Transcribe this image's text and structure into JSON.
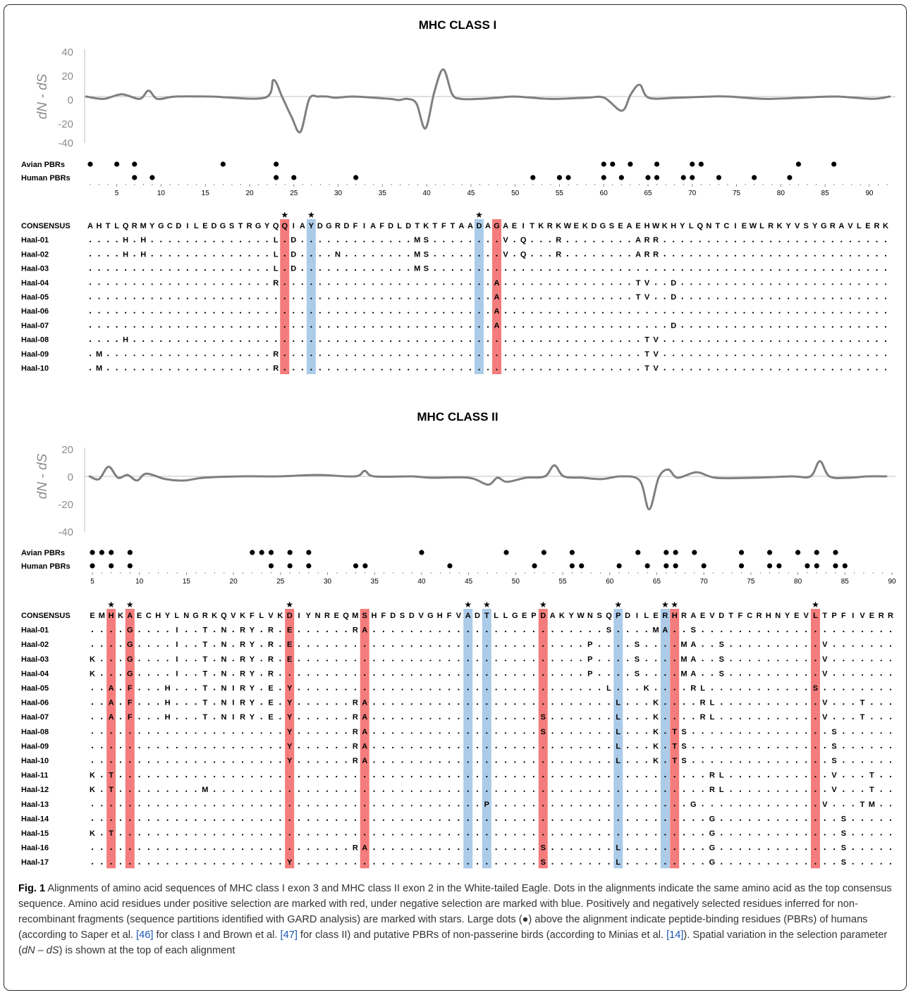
{
  "classI": {
    "title": "MHC CLASS I",
    "ylabel": "dN - dS",
    "yticks": [
      "40",
      "20",
      "0",
      "-20",
      "-40"
    ],
    "avian_label": "Avian PBRs",
    "human_label": "Human PBRs",
    "avian_pbrs": [
      2,
      5,
      7,
      17,
      23,
      60,
      61,
      63,
      66,
      70,
      71,
      82,
      86
    ],
    "human_pbrs": [
      7,
      9,
      23,
      25,
      32,
      52,
      55,
      56,
      60,
      62,
      65,
      66,
      69,
      70,
      73,
      77,
      81
    ],
    "axis_min": 2,
    "axis_max": 92,
    "axis_labels": [
      "5",
      "10",
      "15",
      "20",
      "25",
      "30",
      "35",
      "40",
      "45",
      "50",
      "55",
      "60",
      "65",
      "70",
      "75",
      "80",
      "85",
      "90"
    ],
    "consensus_label": "CONSENSUS",
    "consensus": "AHTLQRMYGCDILEDGSTRGYQQIAYDGRDFIAFDLDTKTFTAADAGAEITKRKWEKDGSEAEHWKHYLQNTCIEWLRKYVSYGRAVLERK",
    "red_cols": [
      22,
      46
    ],
    "blue_cols": [
      25,
      44
    ],
    "star_cols": [
      22,
      25,
      44
    ],
    "rows": [
      {
        "name": "Haal-01",
        "seq": "....H.H..............L.D.............MS........V.Q...R........ARR........................"
      },
      {
        "name": "Haal-02",
        "seq": "....H.H..............L.D....N........MS........V.Q...R........ARR........................"
      },
      {
        "name": "Haal-03",
        "seq": ".....................L.D.............MS................................................."
      },
      {
        "name": "Haal-04",
        "seq": ".....................R........................A...............TV..D......................"
      },
      {
        "name": "Haal-05",
        "seq": "..............................................A...............TV..D......................"
      },
      {
        "name": "Haal-06",
        "seq": "..............................................A.........................................."
      },
      {
        "name": "Haal-07",
        "seq": "..............................................A...................D......................"
      },
      {
        "name": "Haal-08",
        "seq": "....H..........................................................TV........................"
      },
      {
        "name": "Haal-09",
        "seq": ".M...................R.........................................TV........................"
      },
      {
        "name": "Haal-10",
        "seq": ".M...................R.........................................TV........................"
      }
    ],
    "curve_x": [
      0,
      2,
      4,
      6,
      7,
      8,
      10,
      14,
      20,
      21,
      22,
      23,
      24,
      25,
      26,
      27,
      28,
      30,
      34,
      35,
      36,
      37,
      38,
      39,
      40,
      41,
      42,
      44,
      46,
      48,
      52,
      56,
      58,
      60,
      61,
      62,
      63,
      66,
      70,
      72,
      76,
      80,
      84,
      88,
      90
    ],
    "curve_y": [
      0,
      -2,
      2,
      -2,
      5,
      -2,
      0,
      0,
      -1,
      14,
      -1,
      -17,
      -30,
      -2,
      0,
      0,
      -1,
      0,
      -2,
      -3,
      -2,
      -6,
      -27,
      4,
      23,
      2,
      -2,
      -2,
      -1,
      0,
      -2,
      -1,
      -1,
      -12,
      2,
      10,
      -1,
      -1,
      0,
      0,
      -2,
      -1,
      0,
      -2,
      0
    ]
  },
  "classII": {
    "title": "MHC CLASS II",
    "ylabel": "dN - dS",
    "yticks": [
      "20",
      "0",
      "-20",
      "-40"
    ],
    "avian_label": "Avian PBRs",
    "human_label": "Human PBRs",
    "avian_pbrs": [
      5,
      6,
      7,
      9,
      22,
      23,
      24,
      26,
      28,
      40,
      49,
      53,
      56,
      63,
      66,
      67,
      69,
      74,
      77,
      80,
      82,
      84
    ],
    "human_pbrs": [
      5,
      7,
      9,
      24,
      26,
      28,
      33,
      34,
      43,
      52,
      56,
      57,
      61,
      64,
      66,
      67,
      70,
      74,
      77,
      78,
      81,
      82,
      84,
      85
    ],
    "axis_min": 5,
    "axis_max": 90,
    "axis_labels": [
      "5",
      "10",
      "15",
      "20",
      "25",
      "30",
      "35",
      "40",
      "45",
      "50",
      "55",
      "60",
      "65",
      "70",
      "75",
      "80",
      "85",
      "90"
    ],
    "consensus_label": "CONSENSUS",
    "consensus": "EMHKAECHYLNGRKQVKFLVKDIYNREQMSHFDSDVGHFVADTLLGEPDAKYWNSQPDILERHRAEVDTFCRHNYEVLTPFIVERR",
    "red_cols": [
      2,
      4,
      21,
      29,
      48,
      62,
      77
    ],
    "blue_cols": [
      40,
      42,
      56,
      61
    ],
    "star_cols": [
      2,
      4,
      21,
      40,
      42,
      48,
      56,
      61,
      62,
      77
    ],
    "rows": [
      {
        "name": "Haal-01",
        "seq": "....G....I..T.N.RY.R.E......RA.........................S....MA..S......................."
      },
      {
        "name": "Haal-02",
        "seq": "....G....I..T.N.RY.R.E...............................P....S....MA..S..........V.........."
      },
      {
        "name": "Haal-03",
        "seq": "K...G....I..T.N.RY.R.E...............................P....S....MA..S..........V.........."
      },
      {
        "name": "Haal-04",
        "seq": "K...G....I..T.N.RY.R.................................P....S....MA..S..........V.........."
      },
      {
        "name": "Haal-05",
        "seq": "..A.F...H...T.NIRY.E.Y.................................L...K....RL...........S.........."
      },
      {
        "name": "Haal-06",
        "seq": "..A.F...H...T.NIRY.E.Y......RA..........................L...K....RL...........V...T......"
      },
      {
        "name": "Haal-07",
        "seq": "..A.F...H...T.NIRY.E.Y......RA..................S.......L...K....RL...........V...T......"
      },
      {
        "name": "Haal-08",
        "seq": ".....................Y......RA..................S.......L...K.TS...............S.........."
      },
      {
        "name": "Haal-09",
        "seq": ".....................Y......RA..........................L...K.TS...............S.........."
      },
      {
        "name": "Haal-10",
        "seq": ".....................Y......RA..........................L...K.TS...............S.........."
      },
      {
        "name": "Haal-11",
        "seq": "K.T...............................................................RL...........V...T......"
      },
      {
        "name": "Haal-12",
        "seq": "K.T.........M.....................................................RL...........V...T......"
      },
      {
        "name": "Haal-13",
        "seq": "..........................................P.....................G.............V...TM....."
      },
      {
        "name": "Haal-14",
        "seq": "..................................................................G.............S.........."
      },
      {
        "name": "Haal-15",
        "seq": "K.T...............................................................G.............S.........."
      },
      {
        "name": "Haal-16",
        "seq": "............................RA..................S.......L.........G.............S.........."
      },
      {
        "name": "Haal-17",
        "seq": ".....................Y..........................S.......L.........G.............S.........."
      }
    ],
    "curve_x": [
      0,
      1,
      2,
      3,
      4,
      5,
      6,
      8,
      10,
      12,
      16,
      20,
      24,
      28,
      29,
      30,
      34,
      36,
      40,
      42,
      43,
      44,
      46,
      48,
      49,
      50,
      52,
      54,
      56,
      58,
      59,
      60,
      61,
      62,
      64,
      66,
      70,
      74,
      76,
      77,
      78,
      80,
      82,
      84
    ],
    "curve_y": [
      0,
      -2,
      7,
      -1,
      1,
      -3,
      2,
      -2,
      -3,
      -1,
      0,
      0,
      1,
      0,
      4,
      0,
      0,
      -1,
      -1,
      -6,
      -1,
      -4,
      -1,
      0,
      8,
      0,
      -1,
      -2,
      0,
      -3,
      -24,
      -1,
      5,
      -1,
      3,
      -1,
      -1,
      0,
      0,
      11,
      0,
      -1,
      0,
      0
    ]
  },
  "caption": {
    "fig_label": "Fig. 1",
    "part1": " Alignments of amino acid sequences of MHC class I exon 3 and MHC class II exon 2 in the White-tailed Eagle. Dots in the alignments indicate the same amino acid as the top consensus sequence. Amino acid residues under positive selection are marked with red, under negative selection are marked with blue. Positively and negatively selected residues inferred for non-recombinant fragments (sequence partitions identified with GARD analysis) are marked with stars. Large dots (●) above the alignment indicate peptide-binding residues (PBRs) of humans (according to Saper et al. ",
    "ref1": "[46]",
    "part2": " for class I and Brown et al. ",
    "ref2": "[47]",
    "part3": " for class II) and putative PBRs of non-passerine birds (according to Minias et al. ",
    "ref3": "[14]",
    "part4": "). Spatial variation in the selection parameter (",
    "ital": "dN – dS",
    "part5": ") is shown at the top of each alignment"
  },
  "colors": {
    "red": "#f47c7c",
    "blue": "#abcbe8",
    "curve": "#7f7f7f",
    "axis": "#bfbfbf"
  }
}
